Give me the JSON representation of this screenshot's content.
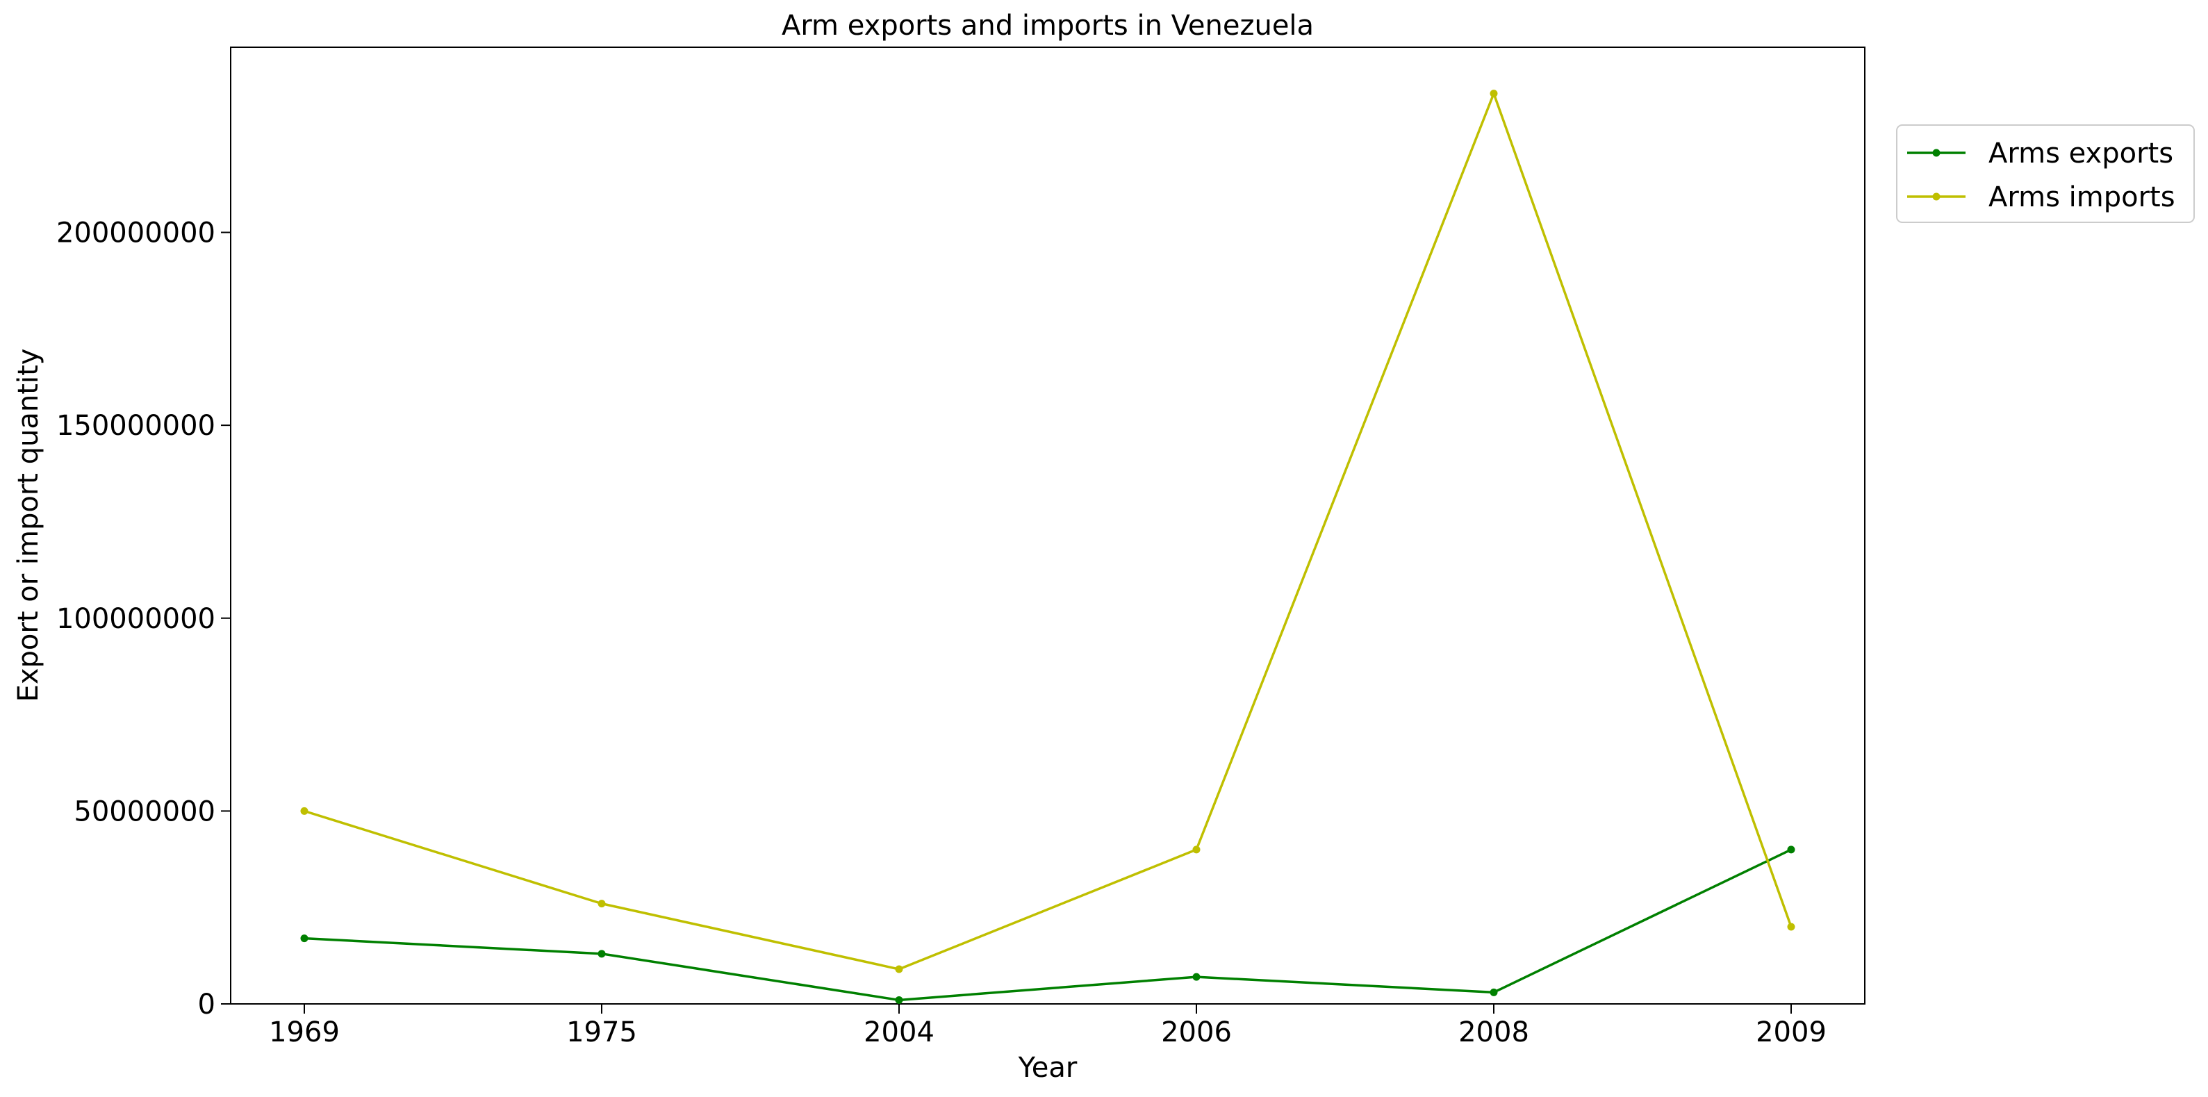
{
  "chart_data": {
    "type": "line",
    "title": "Arm exports and imports in Venezuela",
    "xlabel": "Year",
    "ylabel": "Export or import quantity",
    "categories": [
      "1969",
      "1975",
      "2004",
      "2006",
      "2008",
      "2009"
    ],
    "ylim": [
      0,
      248000000
    ],
    "yticks": [
      0,
      50000000,
      100000000,
      150000000,
      200000000
    ],
    "ytick_labels": [
      "0",
      "50000000",
      "100000000",
      "150000000",
      "200000000"
    ],
    "grid": false,
    "legend": "upper-right-outside",
    "series": [
      {
        "name": "Arms exports",
        "color": "#008000",
        "values": [
          17000000,
          13000000,
          1000000,
          7000000,
          3000000,
          40000000
        ]
      },
      {
        "name": "Arms imports",
        "color": "#bfbf00",
        "values": [
          50000000,
          26000000,
          9000000,
          40000000,
          236000000,
          20000000
        ]
      }
    ]
  }
}
